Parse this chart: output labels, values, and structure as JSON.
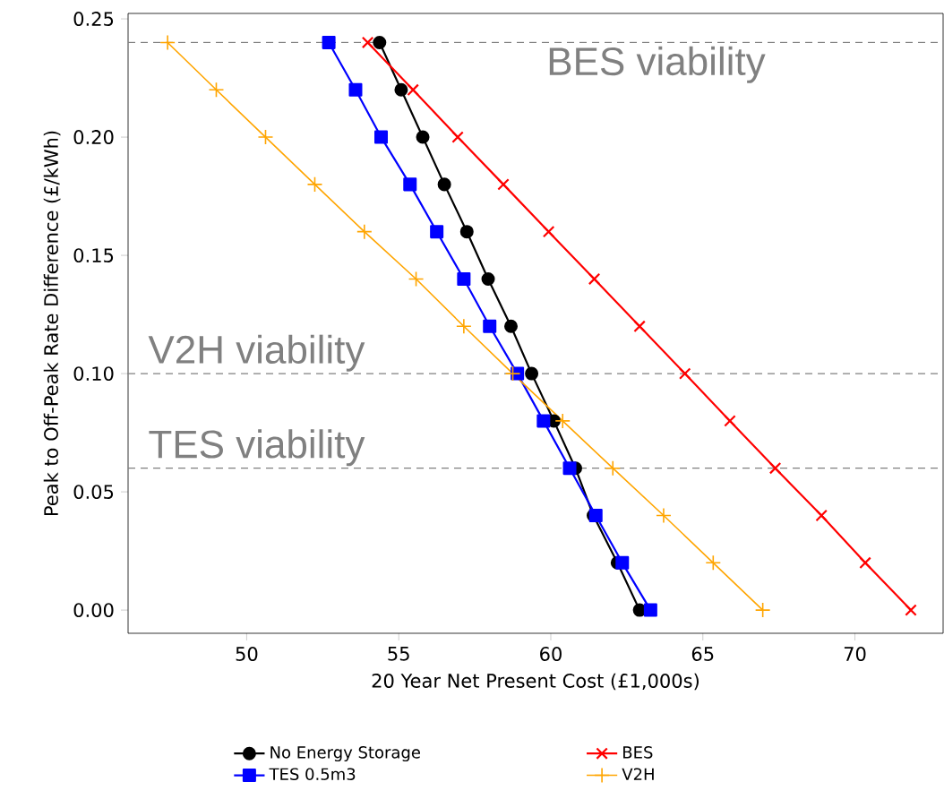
{
  "chart_data": {
    "type": "line",
    "xlabel": "20 Year Net Present Cost (£1,000s)",
    "ylabel": "Peak to Off-Peak Rate Difference (£/kWh)",
    "x": [
      0.24,
      0.22,
      0.2,
      0.18,
      0.16,
      0.14,
      0.12,
      0.1,
      0.08,
      0.06,
      0.04,
      0.02,
      0.0
    ],
    "series": [
      {
        "name": "No Energy Storage",
        "color": "#000000",
        "marker": "circle",
        "values": [
          54.37,
          55.08,
          55.79,
          56.5,
          57.24,
          57.94,
          58.69,
          59.37,
          60.1,
          60.81,
          61.4,
          62.19,
          62.92
        ]
      },
      {
        "name": "TES 0.5m3",
        "color": "#0000ff",
        "marker": "square",
        "values": [
          52.7,
          53.58,
          54.42,
          55.37,
          56.25,
          57.14,
          57.99,
          58.9,
          59.76,
          60.62,
          61.48,
          62.35,
          63.28
        ]
      },
      {
        "name": "BES",
        "color": "#ff0000",
        "marker": "cross",
        "values": [
          53.98,
          55.47,
          56.94,
          58.44,
          59.93,
          61.43,
          62.92,
          64.41,
          65.89,
          67.38,
          68.9,
          70.34,
          71.84
        ]
      },
      {
        "name": "V2H",
        "color": "#ffa500",
        "marker": "plus",
        "values": [
          47.4,
          49.0,
          50.62,
          52.24,
          53.87,
          55.57,
          57.14,
          58.75,
          60.39,
          62.04,
          63.71,
          65.34,
          66.97
        ]
      }
    ],
    "orientation": "horizontal",
    "xlim": [
      46.1,
      72.9
    ],
    "ylim": [
      -0.0098,
      0.2523
    ],
    "xticks": [
      50,
      55,
      60,
      65,
      70
    ],
    "yticks": [
      {
        "value": 0,
        "label": "0.00"
      },
      {
        "value": 0.05,
        "label": "0.05"
      },
      {
        "value": 0.1,
        "label": "0.10"
      },
      {
        "value": 0.15,
        "label": "0.15"
      },
      {
        "value": 0.2,
        "label": "0.20"
      },
      {
        "value": 0.25,
        "label": "0.25"
      }
    ],
    "ref_lines": [
      {
        "axis": "y",
        "value": 0.24,
        "label": "BES viability",
        "color": "#808080",
        "line_style": "dashed"
      },
      {
        "axis": "y",
        "value": 0.1,
        "label": "V2H viability",
        "color": "#808080",
        "line_style": "dashed"
      },
      {
        "axis": "y",
        "value": 0.06,
        "label": "TES viability",
        "color": "#808080",
        "line_style": "dashed"
      }
    ],
    "grid": false,
    "legend": "bottom",
    "line_style": "solid"
  }
}
